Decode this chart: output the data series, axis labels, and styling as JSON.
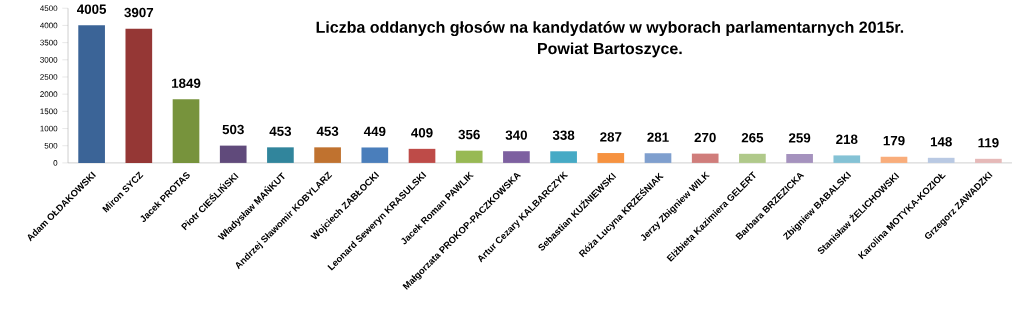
{
  "chart_data": {
    "type": "bar",
    "title": "Liczba oddanych głosów na kandydatów w wyborach parlamentarnych 2015r.",
    "subtitle": "Powiat Bartoszyce.",
    "categories": [
      "Adam OŁDAKOWSKI",
      "Miron SYCZ",
      "Jacek PROTAS",
      "Piotr CIEŚLIŃSKI",
      "Władysław MAŃKUT",
      "Andrzej Sławomir KOBYLARZ",
      "Wojciech ZABŁOCKI",
      "Leonard Seweryn KRASULSKI",
      "Jacek Roman PAWLIK",
      "Małgorzata PROKOP-PACZKOWSKA",
      "Artur Cezary KALBARCZYK",
      "Sebastian KUŹNIEWSKI",
      "Róża Lucyna KRZEŚNIAK",
      "Jerzy Zbigniew WILK",
      "Elżbieta Kazimiera GELERT",
      "Barbara BRZEZICKA",
      "Zbigniew BABALSKI",
      "Stanisław ŻELICHOWSKI",
      "Karolina MOTYKA-KOZIOŁ",
      "Grzegorz ZAWADZKI"
    ],
    "values": [
      4005,
      3907,
      1849,
      503,
      453,
      453,
      449,
      409,
      356,
      340,
      338,
      287,
      281,
      270,
      265,
      259,
      218,
      179,
      148,
      119
    ],
    "colors": [
      "#3b6497",
      "#953735",
      "#77933c",
      "#604a7b",
      "#31859c",
      "#c0722f",
      "#4a7ebb",
      "#be4b48",
      "#98b954",
      "#7d60a0",
      "#46aac5",
      "#f69240",
      "#7f9fce",
      "#d07d7b",
      "#b0c98a",
      "#a592be",
      "#84c2d5",
      "#f9ad7b",
      "#b9c9e3",
      "#e6b9b8"
    ],
    "ylim": [
      0,
      4500
    ],
    "yticks": [
      0,
      500,
      1000,
      1500,
      2000,
      2500,
      3000,
      3500,
      4000,
      4500
    ],
    "data_labels": true
  }
}
